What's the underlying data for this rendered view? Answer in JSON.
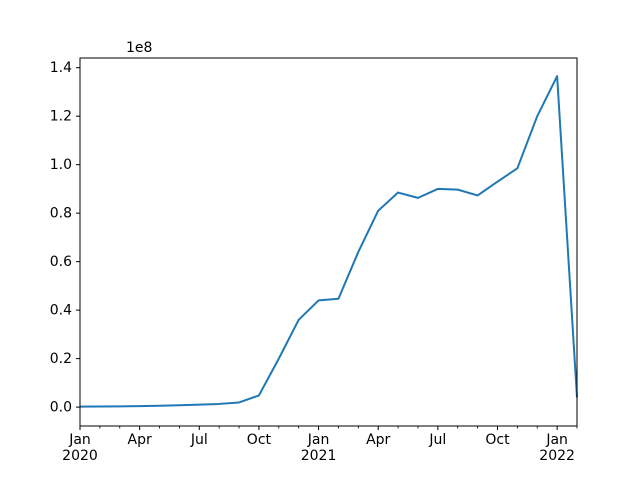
{
  "chart_data": {
    "type": "line",
    "title": "",
    "xlabel": "",
    "ylabel": "",
    "grid": false,
    "legend": null,
    "y_offset_label": "1e8",
    "ylim": [
      -7800000,
      144000000
    ],
    "x_categories": [
      "Jan 2020",
      "Feb 2020",
      "Mar 2020",
      "Apr 2020",
      "May 2020",
      "Jun 2020",
      "Jul 2020",
      "Aug 2020",
      "Sep 2020",
      "Oct 2020",
      "Nov 2020",
      "Dec 2020",
      "Jan 2021",
      "Feb 2021",
      "Mar 2021",
      "Apr 2021",
      "May 2021",
      "Jun 2021",
      "Jul 2021",
      "Aug 2021",
      "Sep 2021",
      "Oct 2021",
      "Nov 2021",
      "Dec 2021",
      "Jan 2022",
      "Feb 2022"
    ],
    "series": [
      {
        "name": "value",
        "color": "#1f77b4",
        "values": [
          200000,
          250000,
          300000,
          400000,
          550000,
          750000,
          1000000,
          1300000,
          1900000,
          4800000,
          20000000,
          36000000,
          44000000,
          44700000,
          64000000,
          81000000,
          88500000,
          86300000,
          90000000,
          89700000,
          87300000,
          93000000,
          98500000,
          120000000,
          136500000,
          4000000
        ]
      }
    ],
    "y_ticks": {
      "values": [
        0,
        20000000,
        40000000,
        60000000,
        80000000,
        100000000,
        120000000,
        140000000
      ],
      "labels": [
        "0.0",
        "0.2",
        "0.4",
        "0.6",
        "0.8",
        "1.0",
        "1.2",
        "1.4"
      ]
    },
    "x_major_ticks": [
      {
        "index": 0,
        "line1": "Jan",
        "line2": "2020"
      },
      {
        "index": 3,
        "line1": "Apr",
        "line2": ""
      },
      {
        "index": 6,
        "line1": "Jul",
        "line2": ""
      },
      {
        "index": 9,
        "line1": "Oct",
        "line2": ""
      },
      {
        "index": 12,
        "line1": "Jan",
        "line2": "2021"
      },
      {
        "index": 15,
        "line1": "Apr",
        "line2": ""
      },
      {
        "index": 18,
        "line1": "Jul",
        "line2": ""
      },
      {
        "index": 21,
        "line1": "Oct",
        "line2": ""
      },
      {
        "index": 24,
        "line1": "Jan",
        "line2": "2022"
      }
    ]
  }
}
